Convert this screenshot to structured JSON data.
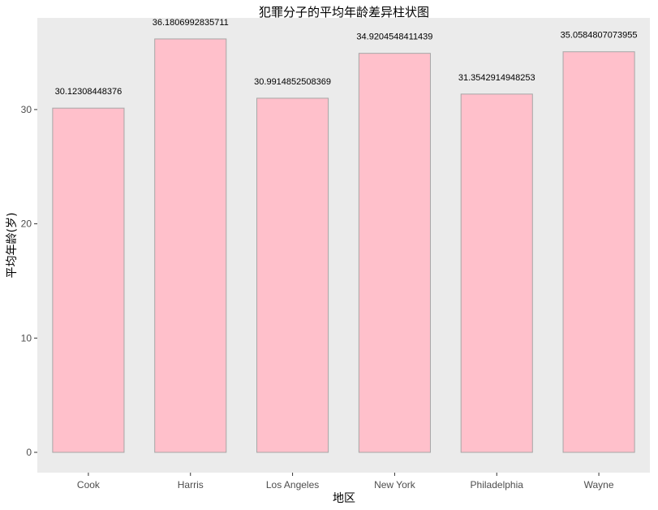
{
  "chart_data": {
    "type": "bar",
    "title": "犯罪分子的平均年龄差异柱状图",
    "xlabel": "地区",
    "ylabel": "平均年龄(岁)",
    "categories": [
      "Cook",
      "Harris",
      "Los Angeles",
      "New York",
      "Philadelphia",
      "Wayne"
    ],
    "values": [
      30.12308448376,
      36.1806992835711,
      30.9914852508369,
      34.9204548411439,
      31.3542914948253,
      35.0584807073955
    ],
    "value_labels": [
      "30.12308448376",
      "36.1806992835711",
      "30.9914852508369",
      "34.9204548411439",
      "31.3542914948253",
      "35.0584807073955"
    ],
    "ylim": [
      0,
      38
    ],
    "yticks": [
      0,
      10,
      20,
      30
    ],
    "grid": false,
    "legend": "none",
    "colors": {
      "panel": "#ebebeb",
      "bar_fill": "#ffc0cb",
      "bar_stroke": "#a6a6a6",
      "tick_text": "#4d4d4d",
      "tick_mark": "#333333"
    }
  }
}
